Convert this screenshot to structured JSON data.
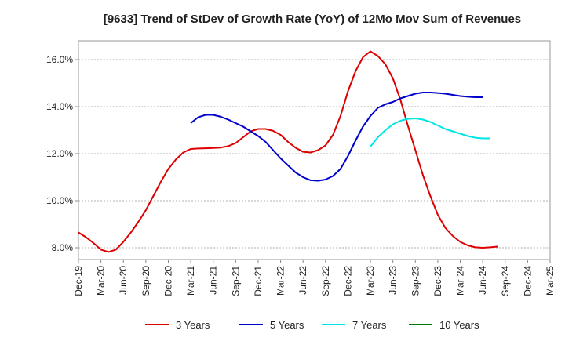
{
  "chart_data": {
    "type": "line",
    "title": "[9633]  Trend of StDev of Growth Rate (YoY) of 12Mo Mov Sum of Revenues",
    "xlabel": "",
    "ylabel": "",
    "ylim": [
      7.5,
      16.8
    ],
    "yticks": [
      8.0,
      10.0,
      12.0,
      14.0,
      16.0
    ],
    "ytick_labels": [
      "8.0%",
      "10.0%",
      "12.0%",
      "14.0%",
      "16.0%"
    ],
    "xtick_labels": [
      "Dec-19",
      "Mar-20",
      "Jun-20",
      "Sep-20",
      "Dec-20",
      "Mar-21",
      "Jun-21",
      "Sep-21",
      "Dec-21",
      "Mar-22",
      "Jun-22",
      "Sep-22",
      "Dec-22",
      "Mar-23",
      "Jun-23",
      "Sep-23",
      "Dec-23",
      "Mar-24",
      "Jun-24",
      "Sep-24",
      "Dec-24",
      "Mar-25"
    ],
    "grid": true,
    "legend_position": "bottom",
    "series": [
      {
        "name": "3 Years",
        "color": "#dd0000",
        "start_index": 0,
        "values": [
          8.65,
          8.45,
          8.2,
          7.92,
          7.82,
          7.92,
          8.25,
          8.65,
          9.1,
          9.6,
          10.2,
          10.8,
          11.35,
          11.75,
          12.05,
          12.2,
          12.22,
          12.23,
          12.24,
          12.26,
          12.32,
          12.45,
          12.7,
          12.95,
          13.05,
          13.05,
          12.97,
          12.8,
          12.5,
          12.25,
          12.08,
          12.05,
          12.15,
          12.35,
          12.8,
          13.6,
          14.65,
          15.5,
          16.1,
          16.35,
          16.15,
          15.8,
          15.2,
          14.3,
          13.2,
          12.15,
          11.1,
          10.2,
          9.4,
          8.85,
          8.5,
          8.25,
          8.1,
          8.02,
          8.0,
          8.02,
          8.05
        ]
      },
      {
        "name": "5 Years",
        "color": "#0000cc",
        "start_index": 15,
        "values": [
          13.3,
          13.55,
          13.65,
          13.65,
          13.57,
          13.45,
          13.3,
          13.15,
          12.95,
          12.75,
          12.5,
          12.15,
          11.8,
          11.5,
          11.2,
          11.0,
          10.87,
          10.85,
          10.9,
          11.05,
          11.35,
          11.9,
          12.55,
          13.15,
          13.6,
          13.95,
          14.1,
          14.2,
          14.35,
          14.45,
          14.55,
          14.6,
          14.6,
          14.58,
          14.55,
          14.5,
          14.45,
          14.42,
          14.4,
          14.4
        ]
      },
      {
        "name": "7 Years",
        "color": "#00e5e5",
        "start_index": 39,
        "values": [
          12.3,
          12.7,
          13.0,
          13.25,
          13.4,
          13.48,
          13.5,
          13.45,
          13.35,
          13.2,
          13.05,
          12.95,
          12.85,
          12.75,
          12.68,
          12.65,
          12.65
        ]
      },
      {
        "name": "10 Years",
        "color": "#007700",
        "start_index": 0,
        "values": []
      }
    ]
  }
}
